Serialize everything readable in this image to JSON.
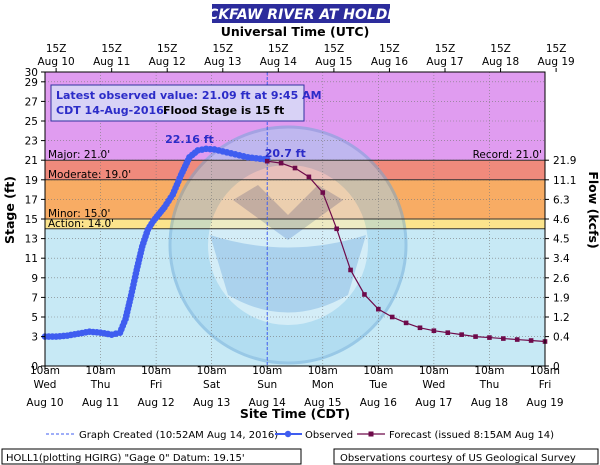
{
  "header": {
    "title": "TICKFAW RIVER AT HOLDEN",
    "subtitle": "Universal Time (UTC)"
  },
  "colors": {
    "title_bar": "#2c2c9c",
    "observed": "#3f5df0",
    "forecast": "#6e0a4a",
    "major_band": "#e09cf0",
    "flood_band": "#f08a7c",
    "moderate_band": "#f8ac64",
    "minor_band": "#fce48c",
    "plot_bg": "#c7e9f5"
  },
  "chart_data": {
    "type": "line",
    "x_unit": "site time CDT, August 2016",
    "xlim": [
      "2016-08-10 10:00",
      "2016-08-19 10:00"
    ],
    "ylim": [
      0,
      30
    ],
    "xlabel": "Site Time (CDT)",
    "ylabel": "Stage (ft)",
    "ylabel_right": "Flow (kcfs)",
    "top_axis_label": "Universal Time (UTC)",
    "top_ticks": [
      {
        "hour": "15Z",
        "date": "Aug 10"
      },
      {
        "hour": "15Z",
        "date": "Aug 11"
      },
      {
        "hour": "15Z",
        "date": "Aug 12"
      },
      {
        "hour": "15Z",
        "date": "Aug 13"
      },
      {
        "hour": "15Z",
        "date": "Aug 14"
      },
      {
        "hour": "15Z",
        "date": "Aug 15"
      },
      {
        "hour": "15Z",
        "date": "Aug 16"
      },
      {
        "hour": "15Z",
        "date": "Aug 17"
      },
      {
        "hour": "15Z",
        "date": "Aug 18"
      },
      {
        "hour": "15Z",
        "date": "Aug 19"
      }
    ],
    "bottom_ticks": [
      {
        "time": "10am",
        "day": "Wed",
        "date": "Aug 10"
      },
      {
        "time": "10am",
        "day": "Thu",
        "date": "Aug 11"
      },
      {
        "time": "10am",
        "day": "Fri",
        "date": "Aug 12"
      },
      {
        "time": "10am",
        "day": "Sat",
        "date": "Aug 13"
      },
      {
        "time": "10am",
        "day": "Sun",
        "date": "Aug 14"
      },
      {
        "time": "10am",
        "day": "Mon",
        "date": "Aug 15"
      },
      {
        "time": "10am",
        "day": "Tue",
        "date": "Aug 16"
      },
      {
        "time": "10am",
        "day": "Wed",
        "date": "Aug 17"
      },
      {
        "time": "10am",
        "day": "Thu",
        "date": "Aug 18"
      },
      {
        "time": "10am",
        "day": "Fri",
        "date": "Aug 19"
      }
    ],
    "left_ticks": [
      "0",
      "3",
      "5",
      "7",
      "9",
      "11",
      "13",
      "15",
      "17",
      "19",
      "21",
      "23",
      "25",
      "27",
      "29",
      "30"
    ],
    "right_ticks": [
      {
        "stage": 0,
        "label": "0"
      },
      {
        "stage": 3,
        "label": "0.4"
      },
      {
        "stage": 5,
        "label": "1.2"
      },
      {
        "stage": 7,
        "label": "1.9"
      },
      {
        "stage": 9,
        "label": "2.6"
      },
      {
        "stage": 11,
        "label": "3.4"
      },
      {
        "stage": 13,
        "label": "4.5"
      },
      {
        "stage": 15,
        "label": "4.6"
      },
      {
        "stage": 17,
        "label": "6.3"
      },
      {
        "stage": 19,
        "label": "11.1"
      },
      {
        "stage": 21,
        "label": "21.9"
      }
    ],
    "flood_categories": [
      {
        "name": "Major",
        "label": "Major: 21.0'",
        "from": 21,
        "to": 30,
        "color": "#e09cf0"
      },
      {
        "name": "Moderate",
        "label": "Moderate: 19.0'",
        "from": 19,
        "to": 21,
        "color": "#f08a7c"
      },
      {
        "name": "Minor",
        "label": "Minor: 15.0'",
        "from": 15,
        "to": 19,
        "color": "#f8ac64"
      },
      {
        "name": "Action",
        "label": "Action: 14.0'",
        "from": 14,
        "to": 15,
        "color": "#fce48c"
      }
    ],
    "record": {
      "label": "Record: 21.0'",
      "value": 21
    },
    "info_box": {
      "line1": "Latest observed value: 21.09 ft at 9:45 AM",
      "line2_date": "CDT 14-Aug-2016.",
      "line2_flood": "Flood Stage is 15 ft"
    },
    "annotations": [
      {
        "text": "22.16 ft",
        "x": 2.6,
        "y": 22.16
      },
      {
        "text": "20.7 ft",
        "x": 4.0,
        "y": 20.7
      }
    ],
    "graph_created_x": 4.0,
    "legend": {
      "created": "Graph Created (10:52AM Aug 14, 2016)",
      "observed": "Observed",
      "forecast": "Forecast (issued 8:15AM Aug 14)"
    },
    "footer": {
      "left": "HOLL1(plotting HGIRG) \"Gage 0\" Datum: 19.15'",
      "right": "Observations courtesy of US Geological Survey"
    },
    "series": [
      {
        "name": "Observed",
        "x_unit": "days after Aug 10 10am CDT",
        "x": [
          0,
          0.2,
          0.4,
          0.6,
          0.8,
          1.0,
          1.2,
          1.35,
          1.45,
          1.55,
          1.65,
          1.75,
          1.85,
          1.95,
          2.05,
          2.15,
          2.3,
          2.45,
          2.6,
          2.75,
          2.9,
          3.05,
          3.2,
          3.35,
          3.5,
          3.65,
          3.8,
          3.95,
          4.0
        ],
        "y": [
          3.0,
          3.0,
          3.1,
          3.3,
          3.5,
          3.4,
          3.2,
          3.4,
          4.8,
          7.2,
          9.8,
          12.2,
          13.9,
          14.8,
          15.5,
          16.2,
          17.5,
          19.5,
          21.3,
          22.0,
          22.16,
          22.1,
          21.9,
          21.7,
          21.5,
          21.3,
          21.2,
          21.1,
          21.09
        ]
      },
      {
        "name": "Forecast",
        "x_unit": "days after Aug 10 10am CDT",
        "x": [
          4.0,
          4.25,
          4.5,
          4.75,
          5.0,
          5.25,
          5.5,
          5.75,
          6.0,
          6.25,
          6.5,
          6.75,
          7.0,
          7.25,
          7.5,
          7.75,
          8.0,
          8.25,
          8.5,
          8.75,
          9.0
        ],
        "y": [
          20.9,
          20.7,
          20.2,
          19.3,
          17.7,
          14.0,
          9.8,
          7.3,
          5.8,
          5.0,
          4.4,
          3.9,
          3.6,
          3.4,
          3.2,
          3.0,
          2.9,
          2.8,
          2.7,
          2.6,
          2.5
        ]
      }
    ]
  }
}
